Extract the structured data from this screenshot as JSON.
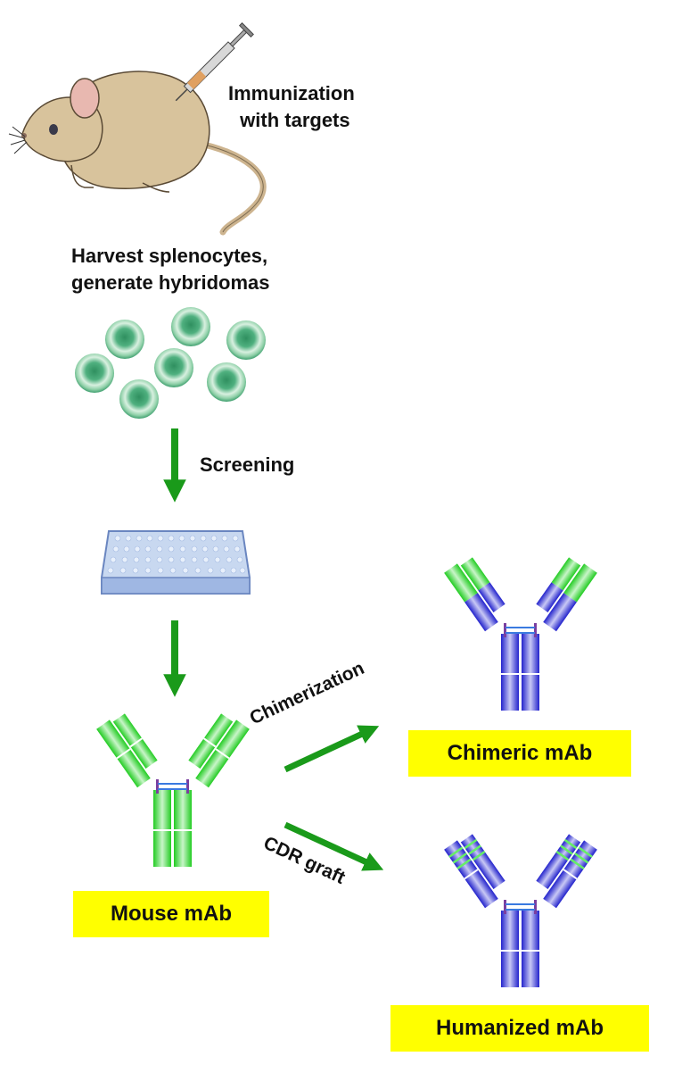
{
  "steps": {
    "immunization": [
      "Immunization",
      "with targets"
    ],
    "harvest": [
      "Harvest splenocytes,",
      "generate hybridomas"
    ],
    "screening": "Screening",
    "chimerization": "Chimerization",
    "cdr_graft": "CDR graft"
  },
  "labels": {
    "mouse": "Mouse mAb",
    "chimeric": "Chimeric mAb",
    "humanized": "Humanized mAb"
  },
  "colors": {
    "arrow": "#1a9a1a",
    "label_bg": "#ffff00",
    "mouse_domain": "#33dd33",
    "human_domain": "#3333dd",
    "cell": "#5fbf8f",
    "plate": "#8fa9d9"
  }
}
